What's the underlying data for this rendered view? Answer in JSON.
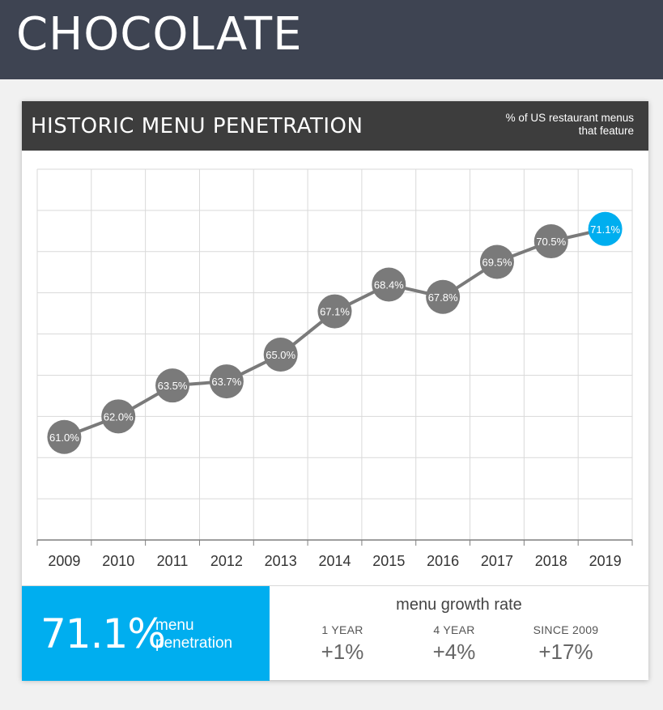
{
  "header": {
    "title": "CHOCOLATE"
  },
  "card": {
    "title": "HISTORIC MENU PENETRATION",
    "note_line1": "% of US restaurant menus",
    "note_line2": "that feature"
  },
  "chart_data": {
    "type": "line",
    "categories": [
      "2009",
      "2010",
      "2011",
      "2012",
      "2013",
      "2014",
      "2015",
      "2016",
      "2017",
      "2018",
      "2019"
    ],
    "values": [
      61.0,
      62.0,
      63.5,
      63.7,
      65.0,
      67.1,
      68.4,
      67.8,
      69.5,
      70.5,
      71.1
    ],
    "labels": [
      "61.0%",
      "62.0%",
      "63.5%",
      "63.7%",
      "65.0%",
      "67.1%",
      "68.4%",
      "67.8%",
      "69.5%",
      "70.5%",
      "71.1%"
    ],
    "ylim": [
      56,
      74
    ],
    "grid": true,
    "colors": {
      "point": "#7a7a7a",
      "highlight": "#00aeef",
      "line": "#7a7a7a"
    }
  },
  "summary": {
    "value": "71.1%",
    "label_line1": "menu",
    "label_line2": "penetration",
    "growth_title": "menu growth rate",
    "growth": [
      {
        "label": "1 YEAR",
        "value": "+1%"
      },
      {
        "label": "4 YEAR",
        "value": "+4%"
      },
      {
        "label": "SINCE 2009",
        "value": "+17%"
      }
    ]
  }
}
